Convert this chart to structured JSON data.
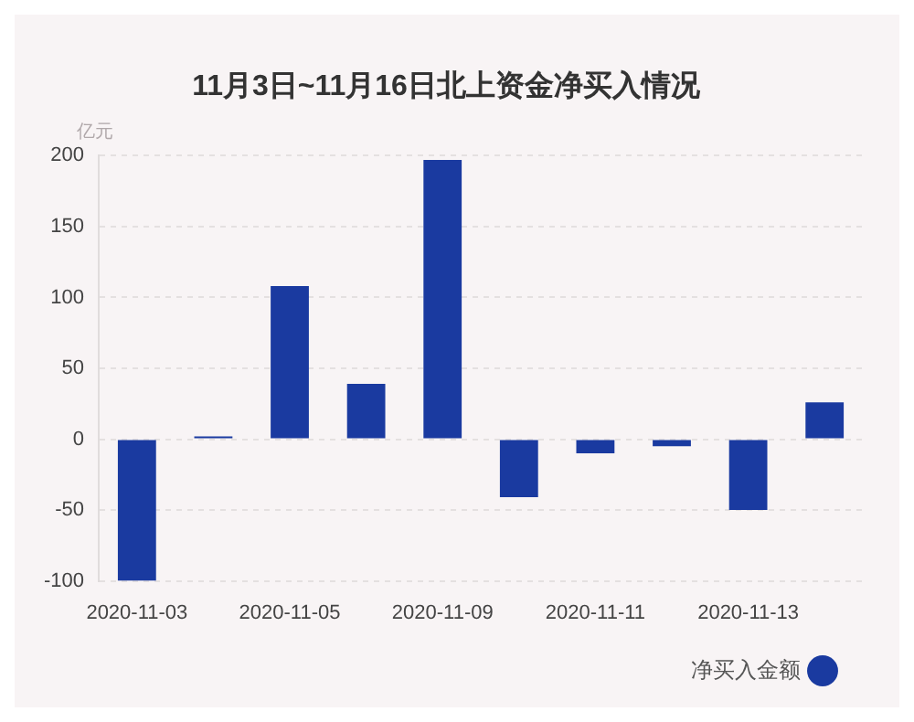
{
  "chart_data": {
    "type": "bar",
    "title": "11月3日~11月16日北上资金净买入情况",
    "ylabel": "亿元",
    "categories": [
      "2020-11-03",
      null,
      "2020-11-05",
      null,
      "2020-11-09",
      null,
      "2020-11-11",
      null,
      "2020-11-13",
      null
    ],
    "series": [
      {
        "name": "净买入金额",
        "color": "#1a3aa0",
        "values": [
          -100,
          2,
          108,
          39,
          197,
          -41,
          -10,
          -5,
          -50,
          26
        ]
      }
    ],
    "ylim": [
      -100,
      200
    ],
    "yticks": [
      -100,
      -50,
      0,
      50,
      100,
      150,
      200
    ],
    "grid": "y",
    "legend": "bottom right"
  }
}
